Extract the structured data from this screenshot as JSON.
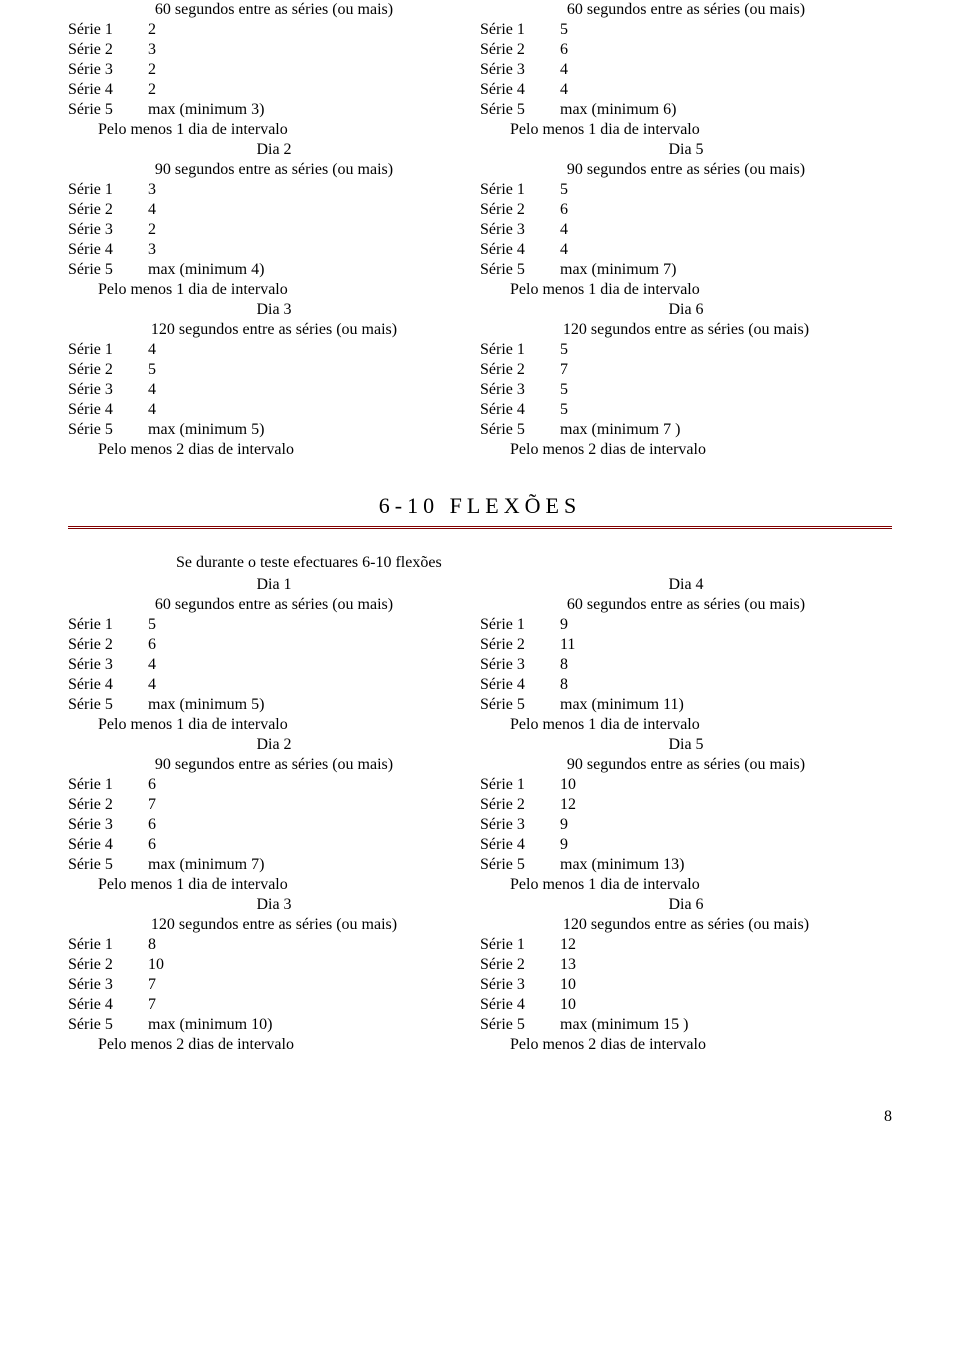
{
  "labels": {
    "serie": "Série",
    "max_prefix": "max (minimum ",
    "max_suffix": ")",
    "interval1": "Pelo menos 1 dia de intervalo",
    "interval2": "Pelo menos 2 dias de intervalo",
    "rest60": "60 segundos entre as séries (ou mais)",
    "rest90": "90 segundos entre as séries (ou mais)",
    "rest120": "120 segundos entre as séries (ou mais)",
    "dia1": "Dia 1",
    "dia2": "Dia 2",
    "dia3": "Dia 3",
    "dia4": "Dia 4",
    "dia5": "Dia 5",
    "dia6": "Dia 6"
  },
  "section1": {
    "blockA": {
      "left": {
        "rest": "rest60",
        "s": [
          "2",
          "3",
          "2",
          "2"
        ],
        "min": "3",
        "interval": "interval1"
      },
      "right": {
        "rest": "rest60",
        "s": [
          "5",
          "6",
          "4",
          "4"
        ],
        "min": "6",
        "interval": "interval1"
      }
    },
    "blockB": {
      "left": {
        "day": "dia2",
        "rest": "rest90",
        "s": [
          "3",
          "4",
          "2",
          "3"
        ],
        "min": "4",
        "interval": "interval1"
      },
      "right": {
        "day": "dia5",
        "rest": "rest90",
        "s": [
          "5",
          "6",
          "4",
          "4"
        ],
        "min": "7",
        "interval": "interval1"
      }
    },
    "blockC": {
      "left": {
        "day": "dia3",
        "rest": "rest120",
        "s": [
          "4",
          "5",
          "4",
          "4"
        ],
        "min": "5",
        "interval": "interval2"
      },
      "right": {
        "day": "dia6",
        "rest": "rest120",
        "s": [
          "5",
          "7",
          "5",
          "5"
        ],
        "min": "7 ",
        "interval": "interval2"
      }
    }
  },
  "section2": {
    "title": "6-10 FLEXÕES",
    "intro": "Se durante o teste efectuares 6-10 flexões",
    "blockA": {
      "left": {
        "day": "dia1",
        "rest": "rest60",
        "s": [
          "5",
          "6",
          "4",
          "4"
        ],
        "min": "5",
        "interval": "interval1"
      },
      "right": {
        "day": "dia4",
        "rest": "rest60",
        "s": [
          "9",
          "11",
          "8",
          "8"
        ],
        "min": "11",
        "interval": "interval1"
      }
    },
    "blockB": {
      "left": {
        "day": "dia2",
        "rest": "rest90",
        "s": [
          "6",
          "7",
          "6",
          "6"
        ],
        "min": "7",
        "interval": "interval1"
      },
      "right": {
        "day": "dia5",
        "rest": "rest90",
        "s": [
          "10",
          "12",
          "9",
          "9"
        ],
        "min": "13",
        "interval": "interval1"
      }
    },
    "blockC": {
      "left": {
        "day": "dia3",
        "rest": "rest120",
        "s": [
          "8",
          "10",
          "7",
          "7"
        ],
        "min": "10",
        "interval": "interval2"
      },
      "right": {
        "day": "dia6",
        "rest": "rest120",
        "s": [
          "12",
          "13",
          "10",
          "10"
        ],
        "min": "15 ",
        "interval": "interval2"
      }
    }
  },
  "page": "8"
}
